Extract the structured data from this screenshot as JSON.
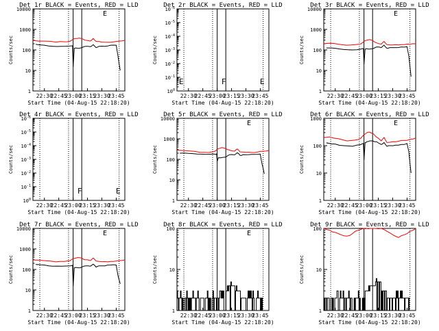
{
  "xtick_labels": [
    "22:30",
    "22:45",
    "23:00",
    "23:15",
    "23:30",
    "23:45"
  ],
  "xlabel": "Start Time (04-Aug-15 22:18:20)",
  "ylabel": "Counts/sec",
  "colors": {
    "events": "#000000",
    "lld": "#ff0000"
  },
  "chart_data": [
    {
      "type": "line",
      "title": "Det 1r BLACK = Events, RED = LLD",
      "yscale": "log",
      "ylim": [
        1,
        10000
      ],
      "ytick_labels": [
        "1",
        "10",
        "100",
        "1000",
        "10000"
      ],
      "flag_labels": [],
      "corner_label": "E",
      "x": [
        22.3,
        23.9
      ],
      "series": [
        {
          "name": "Events",
          "color": "#000000",
          "t": [
            22.35,
            22.38,
            22.5,
            22.65,
            22.8,
            22.95,
            22.99,
            23.0,
            23.02,
            23.05,
            23.1,
            23.15,
            23.22,
            23.3,
            23.35,
            23.4,
            23.45,
            23.55,
            23.65,
            23.75,
            23.78,
            23.82
          ],
          "v": [
            190,
            180,
            170,
            150,
            150,
            155,
            160,
            15,
            120,
            125,
            120,
            130,
            150,
            145,
            180,
            130,
            150,
            150,
            170,
            170,
            50,
            10
          ]
        },
        {
          "name": "LLD",
          "color": "#ff0000",
          "t": [
            22.3,
            22.5,
            22.7,
            22.85,
            22.95,
            23.0,
            23.05,
            23.1,
            23.15,
            23.2,
            23.3,
            23.35,
            23.4,
            23.5,
            23.6,
            23.7,
            23.8,
            23.9
          ],
          "v": [
            290,
            270,
            240,
            250,
            270,
            330,
            360,
            380,
            360,
            300,
            270,
            360,
            260,
            240,
            235,
            245,
            270,
            290
          ]
        }
      ]
    },
    {
      "type": "line",
      "title": "Det 2r BLACK = Events, RED = LLD",
      "yscale": "log",
      "ylim": [
        1e-06,
        1
      ],
      "ytick_labels": [
        "10^0",
        "10^-1",
        "10^-2",
        "10^-3",
        "10^-4",
        "10^-5",
        "10^-6"
      ],
      "flag_labels": [
        "E",
        "F",
        "E"
      ],
      "corner_label": "",
      "x": [
        22.3,
        23.9
      ],
      "series": []
    },
    {
      "type": "line",
      "title": "Det 3r BLACK = Events, RED = LLD",
      "yscale": "log",
      "ylim": [
        1,
        10000
      ],
      "ytick_labels": [
        "1",
        "10",
        "100",
        "1000",
        "10000"
      ],
      "flag_labels": [],
      "corner_label": "E",
      "x": [
        22.3,
        23.9
      ],
      "series": [
        {
          "name": "Events",
          "color": "#000000",
          "t": [
            22.35,
            22.37,
            22.5,
            22.65,
            22.8,
            22.95,
            22.99,
            23.0,
            23.02,
            23.05,
            23.1,
            23.15,
            23.22,
            23.3,
            23.35,
            23.4,
            23.45,
            23.55,
            23.65,
            23.75,
            23.78,
            23.82
          ],
          "v": [
            130,
            125,
            120,
            105,
            100,
            110,
            115,
            20,
            110,
            115,
            110,
            115,
            140,
            130,
            170,
            120,
            130,
            130,
            140,
            145,
            50,
            5
          ]
        },
        {
          "name": "LLD",
          "color": "#ff0000",
          "t": [
            22.3,
            22.4,
            22.55,
            22.7,
            22.85,
            22.95,
            23.0,
            23.05,
            23.1,
            23.15,
            23.2,
            23.3,
            23.35,
            23.4,
            23.5,
            23.6,
            23.7,
            23.8,
            23.9
          ],
          "v": [
            200,
            210,
            190,
            170,
            180,
            200,
            260,
            300,
            320,
            290,
            230,
            190,
            260,
            180,
            175,
            175,
            180,
            190,
            200
          ]
        }
      ]
    },
    {
      "type": "line",
      "title": "Det 4r BLACK = Events, RED = LLD",
      "yscale": "log",
      "ylim": [
        1e-06,
        1
      ],
      "ytick_labels": [
        "10^0",
        "10^-1",
        "10^-2",
        "10^-3",
        "10^-4",
        "10^-5",
        "10^-6"
      ],
      "flag_labels": [
        "F",
        "E"
      ],
      "corner_label": "",
      "x": [
        22.3,
        23.9
      ],
      "series": []
    },
    {
      "type": "line",
      "title": "Det 5r BLACK = Events, RED = LLD",
      "yscale": "log",
      "ylim": [
        1,
        10000
      ],
      "ytick_labels": [
        "1",
        "10",
        "100",
        "1000",
        "10000"
      ],
      "flag_labels": [],
      "corner_label": "E",
      "x": [
        22.3,
        23.9
      ],
      "series": [
        {
          "name": "Events",
          "color": "#000000",
          "t": [
            22.35,
            22.5,
            22.65,
            22.8,
            22.95,
            22.99,
            23.0,
            23.02,
            23.1,
            23.15,
            23.22,
            23.3,
            23.35,
            23.4,
            23.45,
            23.55,
            23.65,
            23.75,
            23.78,
            23.82
          ],
          "v": [
            200,
            195,
            180,
            175,
            180,
            185,
            80,
            120,
            125,
            130,
            170,
            165,
            210,
            155,
            170,
            170,
            175,
            180,
            60,
            20
          ]
        },
        {
          "name": "LLD",
          "color": "#ff0000",
          "t": [
            22.3,
            22.5,
            22.7,
            22.85,
            22.95,
            23.0,
            23.05,
            23.1,
            23.15,
            23.2,
            23.3,
            23.35,
            23.4,
            23.5,
            23.6,
            23.7,
            23.8,
            23.9
          ],
          "v": [
            280,
            260,
            220,
            215,
            240,
            310,
            350,
            370,
            340,
            290,
            250,
            320,
            230,
            220,
            215,
            225,
            250,
            270
          ]
        }
      ]
    },
    {
      "type": "line",
      "title": "Det 6r BLACK = Events, RED = LLD",
      "yscale": "log",
      "ylim": [
        1,
        1000
      ],
      "ytick_labels": [
        "1",
        "10",
        "100",
        "1000"
      ],
      "flag_labels": [],
      "corner_label": "E",
      "x": [
        22.3,
        23.9
      ],
      "series": [
        {
          "name": "Events",
          "color": "#000000",
          "t": [
            22.35,
            22.37,
            22.5,
            22.65,
            22.8,
            22.95,
            22.99,
            23.0,
            23.02,
            23.05,
            23.1,
            23.15,
            23.22,
            23.3,
            23.35,
            23.4,
            23.45,
            23.55,
            23.65,
            23.75,
            23.78,
            23.82
          ],
          "v": [
            130,
            125,
            115,
            100,
            95,
            110,
            120,
            30,
            130,
            140,
            150,
            150,
            140,
            110,
            130,
            95,
            100,
            105,
            110,
            120,
            60,
            10
          ]
        },
        {
          "name": "LLD",
          "color": "#ff0000",
          "t": [
            22.3,
            22.4,
            22.55,
            22.7,
            22.85,
            22.95,
            23.0,
            23.05,
            23.1,
            23.15,
            23.2,
            23.3,
            23.35,
            23.4,
            23.5,
            23.6,
            23.7,
            23.8,
            23.9
          ],
          "v": [
            200,
            210,
            180,
            150,
            160,
            190,
            250,
            300,
            310,
            280,
            220,
            150,
            200,
            130,
            140,
            145,
            155,
            170,
            190
          ]
        }
      ]
    },
    {
      "type": "line",
      "title": "Det 7r BLACK = Events, RED = LLD",
      "yscale": "log",
      "ylim": [
        1,
        10000
      ],
      "ytick_labels": [
        "1",
        "10",
        "100",
        "1000",
        "10000"
      ],
      "flag_labels": [],
      "corner_label": "E",
      "x": [
        22.3,
        23.9
      ],
      "series": [
        {
          "name": "Events",
          "color": "#000000",
          "t": [
            22.35,
            22.38,
            22.5,
            22.65,
            22.8,
            22.95,
            22.99,
            23.0,
            23.02,
            23.05,
            23.1,
            23.15,
            23.22,
            23.3,
            23.35,
            23.4,
            23.45,
            23.55,
            23.65,
            23.75,
            23.78,
            23.82
          ],
          "v": [
            180,
            175,
            165,
            145,
            145,
            150,
            160,
            15,
            120,
            125,
            120,
            130,
            150,
            145,
            180,
            130,
            150,
            150,
            165,
            165,
            50,
            20
          ]
        },
        {
          "name": "LLD",
          "color": "#ff0000",
          "t": [
            22.3,
            22.5,
            22.7,
            22.85,
            22.95,
            23.0,
            23.05,
            23.1,
            23.15,
            23.2,
            23.3,
            23.35,
            23.4,
            23.5,
            23.6,
            23.7,
            23.8,
            23.9
          ],
          "v": [
            290,
            270,
            235,
            245,
            270,
            330,
            360,
            380,
            360,
            300,
            270,
            360,
            255,
            240,
            235,
            245,
            270,
            290
          ]
        }
      ]
    },
    {
      "type": "line",
      "title": "Det 8r BLACK = Events, RED = LLD",
      "yscale": "log",
      "ylim": [
        1,
        100
      ],
      "ytick_labels": [
        "1",
        "10",
        "100"
      ],
      "flag_labels": [],
      "corner_label": "E",
      "x": [
        22.3,
        23.9
      ],
      "series": [
        {
          "name": "Events",
          "color": "#000000",
          "style": "noisy",
          "t": [
            22.3,
            22.5,
            22.7,
            22.9,
            23.0,
            23.1,
            23.2,
            23.3,
            23.4,
            23.5,
            23.6,
            23.7,
            23.8
          ],
          "v": [
            2,
            2,
            2,
            2,
            2,
            3,
            4,
            3,
            2,
            2,
            2,
            2,
            2
          ]
        }
      ]
    },
    {
      "type": "line",
      "title": "Det 9r BLACK = Events, RED = LLD",
      "yscale": "log",
      "ylim": [
        1,
        100
      ],
      "ytick_labels": [
        "1",
        "10",
        "100"
      ],
      "flag_labels": [],
      "corner_label": "",
      "x": [
        22.3,
        23.9
      ],
      "series": [
        {
          "name": "Events",
          "color": "#000000",
          "style": "noisy",
          "t": [
            22.3,
            22.5,
            22.7,
            22.9,
            23.0,
            23.1,
            23.2,
            23.3,
            23.4,
            23.5,
            23.6,
            23.7,
            23.8
          ],
          "v": [
            2,
            2,
            2,
            2,
            3,
            4,
            5,
            3,
            2,
            2,
            2,
            2,
            2
          ]
        },
        {
          "name": "LLD",
          "color": "#ff0000",
          "t": [
            22.3,
            22.4,
            22.5,
            22.6,
            22.7,
            22.8,
            22.9,
            23.0,
            23.05,
            23.1,
            23.2,
            23.3,
            23.4,
            23.5,
            23.6,
            23.7,
            23.8,
            23.9
          ],
          "v": [
            100,
            90,
            80,
            70,
            65,
            75,
            90,
            100,
            100,
            100,
            100,
            100,
            85,
            70,
            60,
            70,
            85,
            100
          ]
        }
      ]
    }
  ]
}
